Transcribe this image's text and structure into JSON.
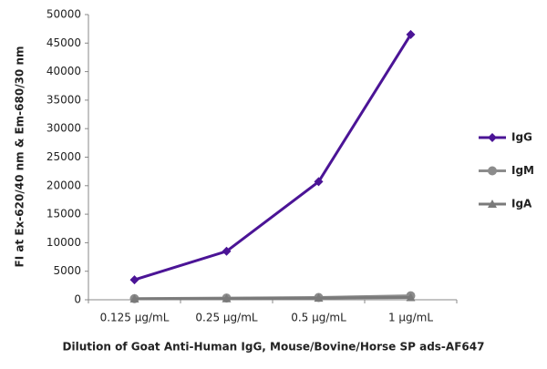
{
  "chart_data": {
    "type": "line",
    "y_label": "FI at Ex-620/40 nm & Em-680/30 nm",
    "x_label": "Dilution of Goat Anti-Human IgG, Mouse/Bovine/Horse SP ads-AF647",
    "categories": [
      "0.125 µg/mL",
      "0.25 µg/mL",
      "0.5 µg/mL",
      "1 µg/mL"
    ],
    "series": [
      {
        "name": "IgG",
        "color": "#4b1496",
        "marker": "diamond",
        "values": [
          3500,
          8500,
          20700,
          46500
        ]
      },
      {
        "name": "IgM",
        "color": "#8c8c8c",
        "marker": "circle",
        "values": [
          200,
          300,
          400,
          700
        ]
      },
      {
        "name": "IgA",
        "color": "#7a7a7a",
        "marker": "triangle",
        "values": [
          150,
          200,
          300,
          400
        ]
      }
    ],
    "ylim": [
      0,
      50000
    ],
    "yticks": [
      0,
      5000,
      10000,
      15000,
      20000,
      25000,
      30000,
      35000,
      40000,
      45000,
      50000
    ],
    "grid": false
  }
}
